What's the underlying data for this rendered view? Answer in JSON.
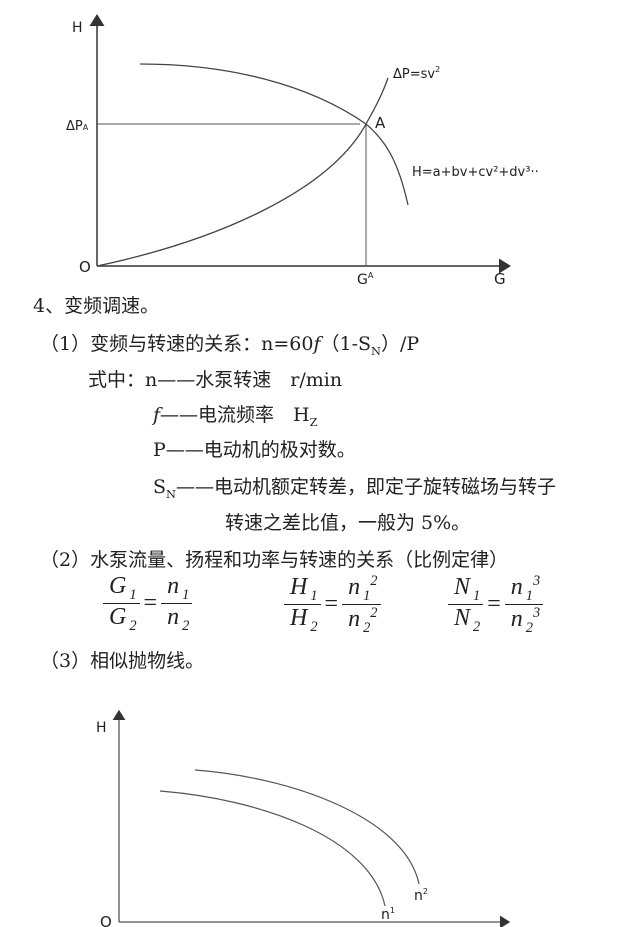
{
  "diagram1": {
    "y_axis_label": "H",
    "x_axis_label": "G",
    "origin_label": "O",
    "dp_a_label": "ΔP",
    "dp_a_sub": "A",
    "point_label": "A",
    "ga_label": "G",
    "ga_sup": "A",
    "system_curve_label": "ΔP=sv",
    "system_curve_sup": "2",
    "pump_curve_label": "H=a+bv+cv²+dv³··"
  },
  "text": {
    "heading": "4、变频调速。",
    "item1": "（1）变频与转速的关系：n=60",
    "item1_f": "f",
    "item1_rest": "（1-S",
    "item1_sub": "N",
    "item1_end": "）/P",
    "def_intro": "式中：n——水泵转速　r/min",
    "def_f_sym": "f",
    "def_f": "——电流频率　H",
    "def_f_sub": "Z",
    "def_p": "P——电动机的极对数。",
    "def_sn_sym": "S",
    "def_sn_sub": "N",
    "def_sn": "——电动机额定转差，即定子旋转磁场与转子",
    "def_sn_cont": "转速之差比值，一般为 5%。",
    "item2": "（2）水泵流量、扬程和功率与转速的关系（比例定律）",
    "item3": "（3）相似抛物线。"
  },
  "formulas": [
    {
      "num": "G",
      "num_sub": "1",
      "den": "G",
      "den_sub": "2",
      "rnum": "n",
      "rnum_sub": "1",
      "rnum_sup": "",
      "rden": "n",
      "rden_sub": "2",
      "rden_sup": ""
    },
    {
      "num": "H",
      "num_sub": "1",
      "den": "H",
      "den_sub": "2",
      "rnum": "n",
      "rnum_sub": "1",
      "rnum_sup": "2",
      "rden": "n",
      "rden_sub": "2",
      "rden_sup": "2"
    },
    {
      "num": "N",
      "num_sub": "1",
      "den": "N",
      "den_sub": "2",
      "rnum": "n",
      "rnum_sub": "1",
      "rnum_sup": "3",
      "rden": "n",
      "rden_sub": "2",
      "rden_sup": "3"
    }
  ],
  "diagram2": {
    "y_axis_label": "H",
    "origin_label": "O",
    "curve1_label": "n",
    "curve1_sup": "1",
    "curve2_label": "n",
    "curve2_sup": "2"
  }
}
